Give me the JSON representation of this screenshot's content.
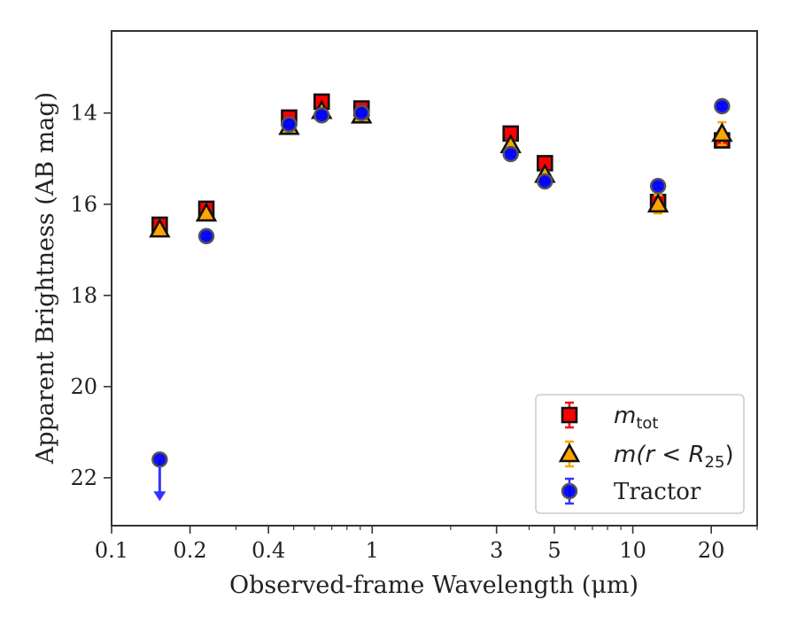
{
  "chart_data": {
    "type": "scatter",
    "xlabel": "Observed-frame Wavelength (μm)",
    "ylabel": "Apparent Brightness (AB mag)",
    "x_scale": "log",
    "xlim": [
      0.1,
      30
    ],
    "ylim": [
      23.05,
      12.2
    ],
    "y_inverted": true,
    "grid": false,
    "legend_position": "lower-right",
    "x_ticks": [
      {
        "value": 0.1,
        "label": "0.1"
      },
      {
        "value": 0.2,
        "label": "0.2"
      },
      {
        "value": 0.4,
        "label": "0.4"
      },
      {
        "value": 1,
        "label": "1"
      },
      {
        "value": 3,
        "label": "3"
      },
      {
        "value": 5,
        "label": "5"
      },
      {
        "value": 10,
        "label": "10"
      },
      {
        "value": 20,
        "label": "20"
      }
    ],
    "y_ticks": [
      {
        "value": 14,
        "label": "14"
      },
      {
        "value": 16,
        "label": "16"
      },
      {
        "value": 18,
        "label": "18"
      },
      {
        "value": 20,
        "label": "20"
      },
      {
        "value": 22,
        "label": "22"
      }
    ],
    "series": [
      {
        "name": "m_tot",
        "legend_main": "m",
        "legend_sub": "tot",
        "marker": "square",
        "color": "#ff0000",
        "errcolor": "#ff0000",
        "x": [
          0.153,
          0.231,
          0.48,
          0.64,
          0.91,
          3.4,
          4.6,
          12.5,
          22.0
        ],
        "y": [
          16.45,
          16.1,
          14.1,
          13.75,
          13.9,
          14.45,
          15.1,
          15.95,
          14.6
        ],
        "err": [
          0.05,
          0.05,
          0.05,
          0.05,
          0.05,
          0.05,
          0.05,
          0.1,
          0.12
        ]
      },
      {
        "name": "m(r < R_25)",
        "legend_main": "m(r < R",
        "legend_sub": "25",
        "legend_tail": ")",
        "marker": "triangle",
        "color": "#ffa500",
        "errcolor": "#ffa500",
        "x": [
          0.153,
          0.231,
          0.48,
          0.64,
          0.91,
          3.4,
          4.6,
          12.5,
          22.0
        ],
        "y": [
          16.55,
          16.2,
          14.3,
          13.95,
          14.05,
          14.7,
          15.35,
          16.0,
          14.45
        ],
        "err": [
          0.05,
          0.05,
          0.05,
          0.05,
          0.05,
          0.08,
          0.08,
          0.2,
          0.25
        ]
      },
      {
        "name": "Tractor",
        "legend_main": "Tractor",
        "marker": "circle",
        "color": "#0000ff",
        "errcolor": "#3333ff",
        "x": [
          0.153,
          0.231,
          0.48,
          0.64,
          0.91,
          3.4,
          4.6,
          12.5,
          22.0
        ],
        "y": [
          21.6,
          16.7,
          14.25,
          14.05,
          14.0,
          14.9,
          15.5,
          15.6,
          13.85
        ],
        "err": [
          0.05,
          0.05,
          0.05,
          0.05,
          0.05,
          0.05,
          0.05,
          0.05,
          0.05
        ],
        "upper_limit_index": 0
      }
    ]
  }
}
